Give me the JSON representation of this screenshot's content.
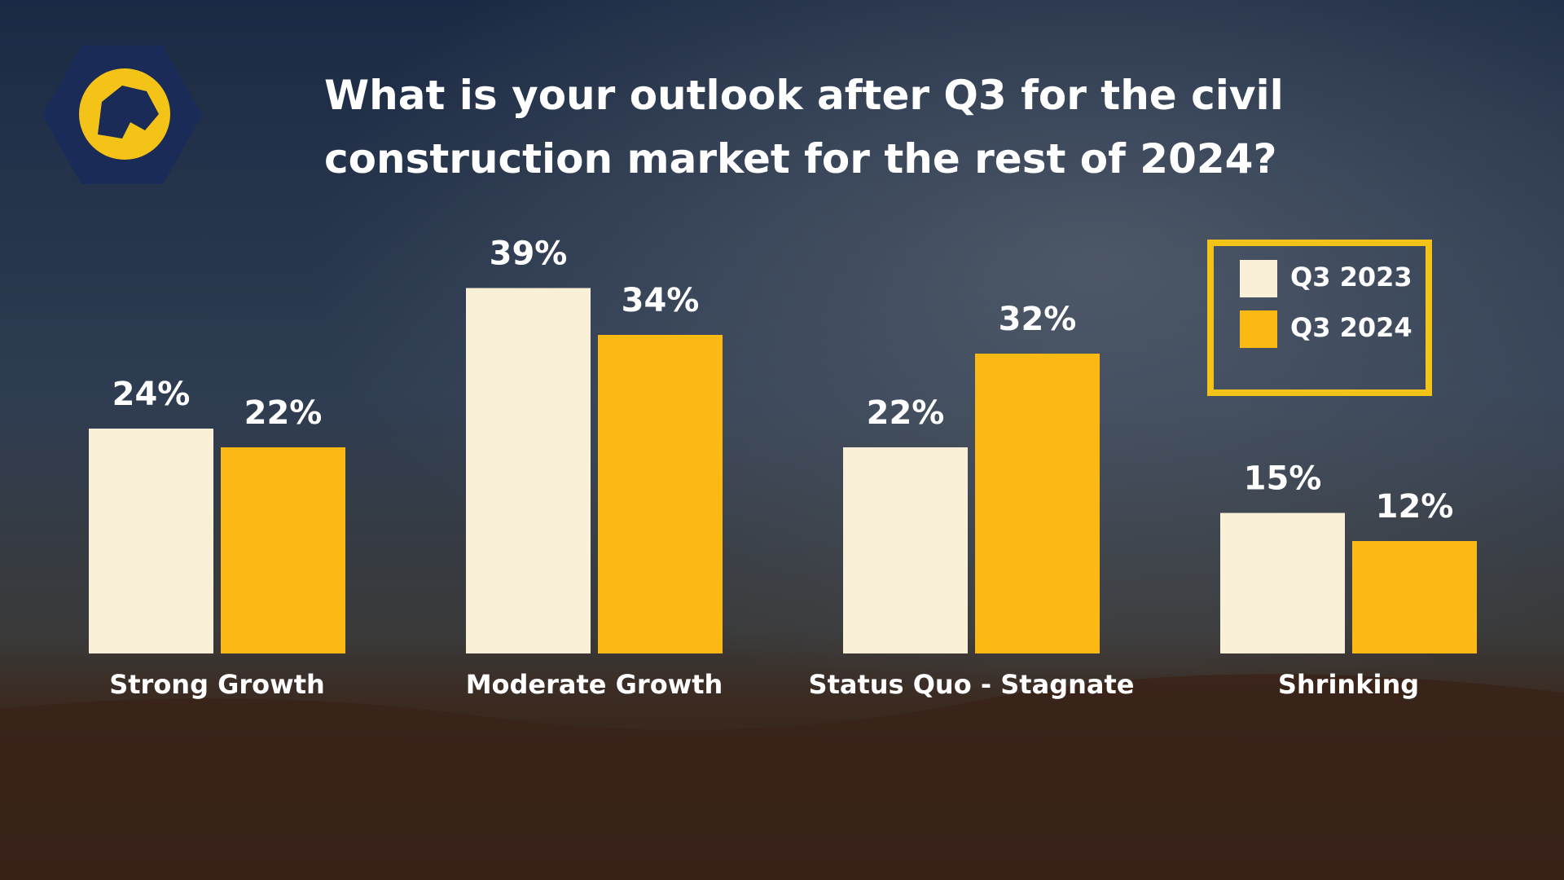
{
  "chart_data": {
    "type": "bar",
    "title": "What is your outlook after Q3 for the civil construction market for the rest of 2024?",
    "categories": [
      "Strong Growth",
      "Moderate Growth",
      "Status Quo - Stagnate",
      "Shrinking"
    ],
    "series": [
      {
        "name": "Q3 2023",
        "color": "#faf0d7",
        "values": [
          24,
          39,
          22,
          15
        ],
        "value_labels": [
          "24%",
          "39%",
          "22%",
          "15%"
        ]
      },
      {
        "name": "Q3 2024",
        "color": "#fdb913",
        "values": [
          22,
          34,
          32,
          12
        ],
        "value_labels": [
          "22%",
          "34%",
          "32%",
          "12%"
        ]
      }
    ],
    "legend": "top-right"
  }
}
